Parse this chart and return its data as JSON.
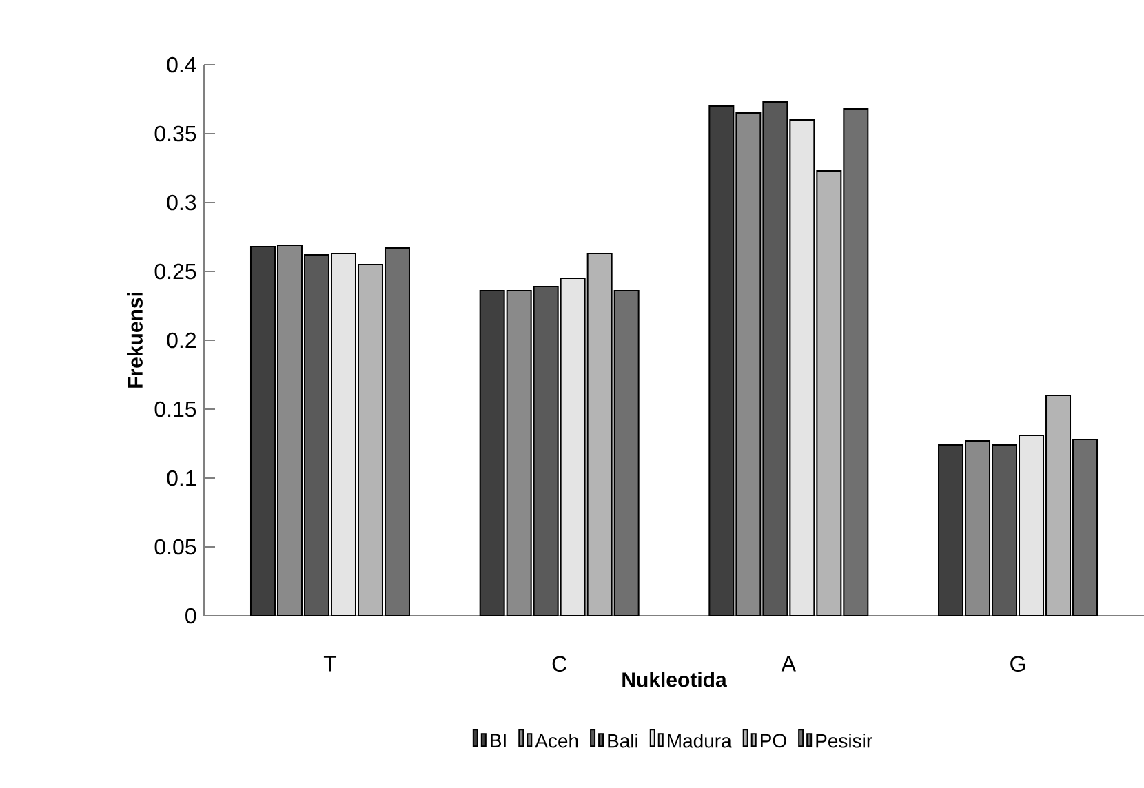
{
  "chart_data": {
    "type": "bar",
    "xlabel": "Nukleotida",
    "ylabel": "Frekuensi",
    "categories": [
      "T",
      "C",
      "A",
      "G"
    ],
    "series": [
      {
        "name": "BI",
        "color": "#404040",
        "values": [
          0.268,
          0.236,
          0.37,
          0.124
        ]
      },
      {
        "name": "Aceh",
        "color": "#8a8a8a",
        "values": [
          0.269,
          0.236,
          0.365,
          0.127
        ]
      },
      {
        "name": "Bali",
        "color": "#5a5a5a",
        "values": [
          0.262,
          0.239,
          0.373,
          0.124
        ]
      },
      {
        "name": "Madura",
        "color": "#e4e4e4",
        "values": [
          0.263,
          0.245,
          0.36,
          0.131
        ]
      },
      {
        "name": "PO",
        "color": "#b4b4b4",
        "values": [
          0.255,
          0.263,
          0.323,
          0.16
        ]
      },
      {
        "name": "Pesisir",
        "color": "#707070",
        "values": [
          0.267,
          0.236,
          0.368,
          0.128
        ]
      }
    ],
    "ylim": [
      0,
      0.4
    ],
    "yticks": [
      0,
      0.05,
      0.1,
      0.15,
      0.2,
      0.25,
      0.3,
      0.35,
      0.4
    ],
    "grid": false,
    "legend": "bottom"
  }
}
